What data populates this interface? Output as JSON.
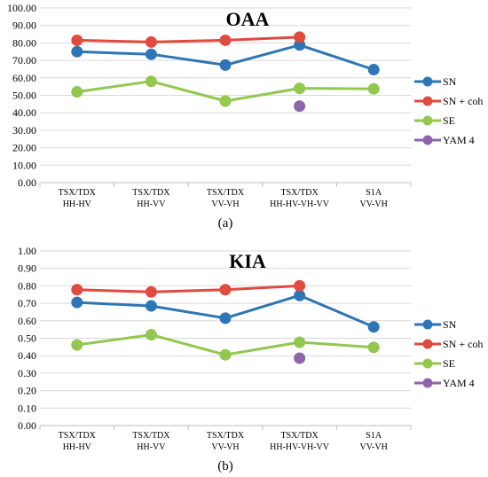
{
  "chart_data": [
    {
      "type": "line",
      "title": "OAA",
      "panel_label": "(a)",
      "categories": [
        [
          "TSX/TDX",
          "HH-HV"
        ],
        [
          "TSX/TDX",
          "HH-VV"
        ],
        [
          "TSX/TDX",
          "VV-VH"
        ],
        [
          "TSX/TDX",
          "HH-HV-VH-VV"
        ],
        [
          "S1A",
          "VV-VH"
        ]
      ],
      "ylim": [
        0,
        100
      ],
      "ytick_step": 10,
      "ytick_labels": [
        "0.00",
        "10.00",
        "20.00",
        "30.00",
        "40.00",
        "50.00",
        "60.00",
        "70.00",
        "80.00",
        "90.00",
        "100.00"
      ],
      "grid": true,
      "legend_position": "right",
      "series": [
        {
          "name": "SN",
          "color": "#2e75b6",
          "values": [
            75.0,
            73.5,
            67.3,
            78.8,
            64.7
          ]
        },
        {
          "name": "SN + coh",
          "color": "#e04a3f",
          "values": [
            81.5,
            80.5,
            81.5,
            83.3,
            null
          ]
        },
        {
          "name": "SE",
          "color": "#92c750",
          "values": [
            52.0,
            58.0,
            46.7,
            54.0,
            53.7
          ]
        },
        {
          "name": "YAM 4",
          "color": "#8e64ab",
          "values": [
            null,
            null,
            null,
            43.8,
            null
          ]
        }
      ]
    },
    {
      "type": "line",
      "title": "KIA",
      "panel_label": "(b)",
      "categories": [
        [
          "TSX/TDX",
          "HH-HV"
        ],
        [
          "TSX/TDX",
          "HH-VV"
        ],
        [
          "TSX/TDX",
          "VV-VH"
        ],
        [
          "TSX/TDX",
          "HH-HV-VH-VV"
        ],
        [
          "S1A",
          "VV-VH"
        ]
      ],
      "ylim": [
        0,
        1
      ],
      "ytick_step": 0.1,
      "ytick_labels": [
        "0.00",
        "0.10",
        "0.20",
        "0.30",
        "0.40",
        "0.50",
        "0.60",
        "0.70",
        "0.80",
        "0.90",
        "1.00"
      ],
      "grid": true,
      "legend_position": "right",
      "series": [
        {
          "name": "SN",
          "color": "#2e75b6",
          "values": [
            0.705,
            0.685,
            0.615,
            0.745,
            0.565
          ]
        },
        {
          "name": "SN + coh",
          "color": "#e04a3f",
          "values": [
            0.778,
            0.765,
            0.778,
            0.8,
            null
          ]
        },
        {
          "name": "SE",
          "color": "#92c750",
          "values": [
            0.462,
            0.52,
            0.405,
            0.477,
            0.448
          ]
        },
        {
          "name": "YAM 4",
          "color": "#8e64ab",
          "values": [
            null,
            null,
            null,
            0.386,
            null
          ]
        }
      ]
    }
  ]
}
